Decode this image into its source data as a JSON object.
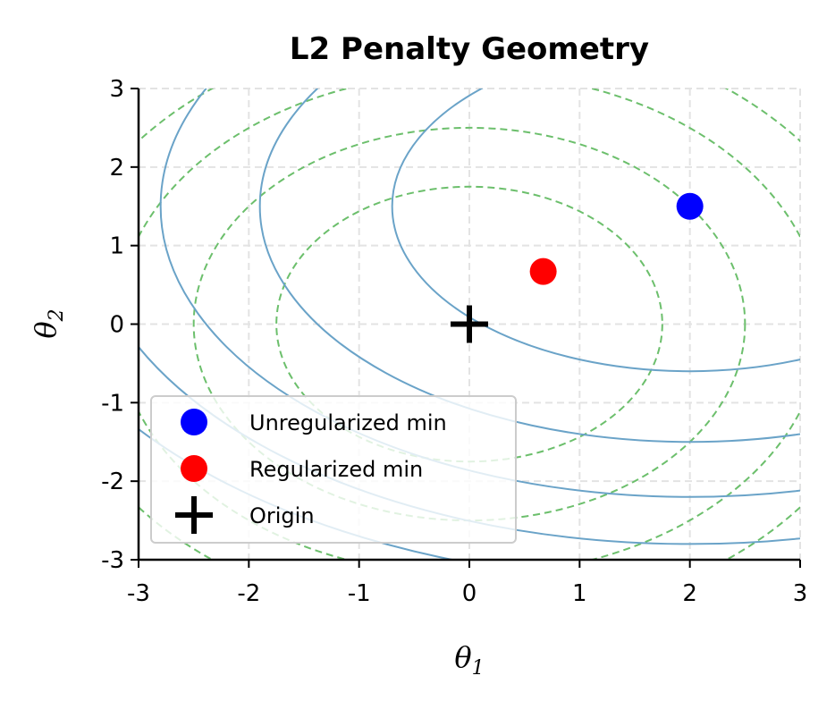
{
  "chart_data": {
    "type": "scatter",
    "title": "L2 Penalty Geometry",
    "xlabel": {
      "symbol": "θ",
      "subscript": "1"
    },
    "ylabel": {
      "symbol": "θ",
      "subscript": "2"
    },
    "xlim": [
      -3,
      3
    ],
    "ylim": [
      -3,
      3
    ],
    "xticks": [
      -3,
      -2,
      -1,
      0,
      1,
      2,
      3
    ],
    "yticks": [
      -3,
      -2,
      -1,
      0,
      1,
      2,
      3
    ],
    "xtick_labels": [
      "-3",
      "-2",
      "-1",
      "0",
      "1",
      "2",
      "3"
    ],
    "ytick_labels": [
      "-3",
      "-2",
      "-1",
      "0",
      "1",
      "2",
      "3"
    ],
    "grid": true,
    "legend_position": "lower-left",
    "loss_contours": {
      "center": [
        2.0,
        1.5
      ],
      "semi_axes": [
        [
          2.7,
          2.1
        ],
        [
          3.9,
          3.0
        ],
        [
          4.8,
          3.7
        ],
        [
          5.5,
          4.3
        ],
        [
          6.2,
          4.8
        ]
      ],
      "color": "#6aa3c8"
    },
    "penalty_contours": {
      "center": [
        0,
        0
      ],
      "semi_axes": [
        [
          1.75,
          1.75
        ],
        [
          2.5,
          2.5
        ],
        [
          3.2,
          3.2
        ],
        [
          3.8,
          3.8
        ],
        [
          4.4,
          4.4
        ]
      ],
      "color": "#6cbf6c",
      "style": "dashed"
    },
    "points": [
      {
        "name": "Unregularized min",
        "x": 2.0,
        "y": 1.5,
        "color": "#0000ff",
        "marker": "circle"
      },
      {
        "name": "Regularized min",
        "x": 0.67,
        "y": 0.67,
        "color": "#ff0000",
        "marker": "circle"
      },
      {
        "name": "Origin",
        "x": 0,
        "y": 0,
        "color": "#000000",
        "marker": "plus"
      }
    ]
  }
}
